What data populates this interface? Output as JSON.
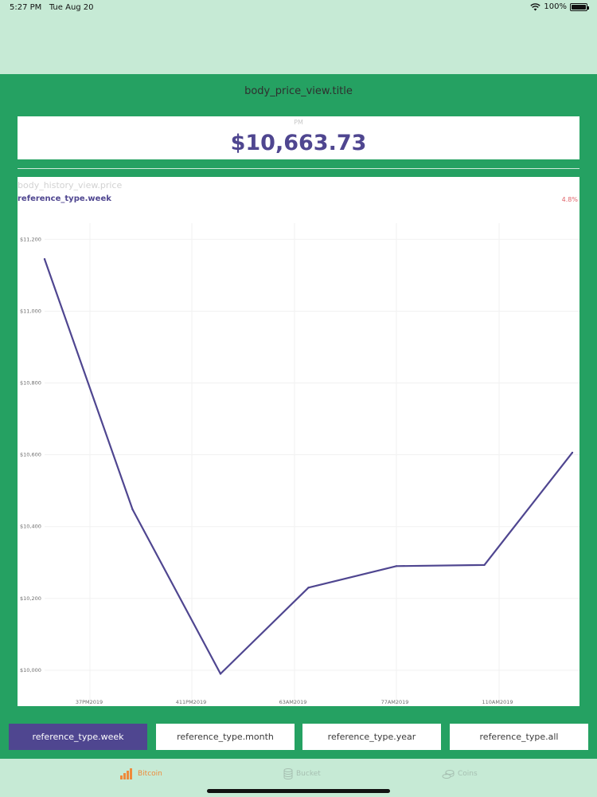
{
  "status_bar": {
    "time": "5:27 PM",
    "date": "Tue Aug 20",
    "battery": "100%",
    "battery_level": 1.0
  },
  "header": {
    "title": "body_price_view.title"
  },
  "price_card": {
    "ampm": "PM",
    "price": "$10,663.73"
  },
  "history": {
    "title": "body_history_view.price",
    "range": "reference_type.week",
    "change": "4.8%"
  },
  "chart_data": {
    "type": "line",
    "title": "",
    "xlabel": "",
    "ylabel": "",
    "y_ticks": [
      "$11,200",
      "$11,000",
      "$10,800",
      "$10,600",
      "$10,400",
      "$10,200",
      "$10,000"
    ],
    "y_tick_values": [
      11200,
      11000,
      10800,
      10600,
      10400,
      10200,
      10000
    ],
    "x_tick_labels": [
      "37PM2019",
      "411PM2019",
      "63AM2019",
      "77AM2019",
      "110AM2019"
    ],
    "ylim": [
      9900,
      11245
    ],
    "grid": true,
    "line_color": "#4f4690",
    "series": [
      {
        "values": [
          11145,
          10448,
          9990,
          10230,
          10290,
          10293,
          10606
        ]
      }
    ]
  },
  "range_buttons": [
    {
      "label": "reference_type.week",
      "active": true
    },
    {
      "label": "reference_type.month",
      "active": false
    },
    {
      "label": "reference_type.year",
      "active": false
    },
    {
      "label": "reference_type.all",
      "active": false
    }
  ],
  "tabs": [
    {
      "label": "Bitcoin",
      "icon": "bar-chart-icon",
      "active": true
    },
    {
      "label": "Bucket",
      "icon": "database-icon",
      "active": false
    },
    {
      "label": "Coins",
      "icon": "coins-icon",
      "active": false
    }
  ],
  "colors": {
    "accent": "#4f4690",
    "primary": "#25a162",
    "background": "#c6ead5",
    "negative": "#e0656b",
    "active_tab": "#ef8a3a"
  }
}
